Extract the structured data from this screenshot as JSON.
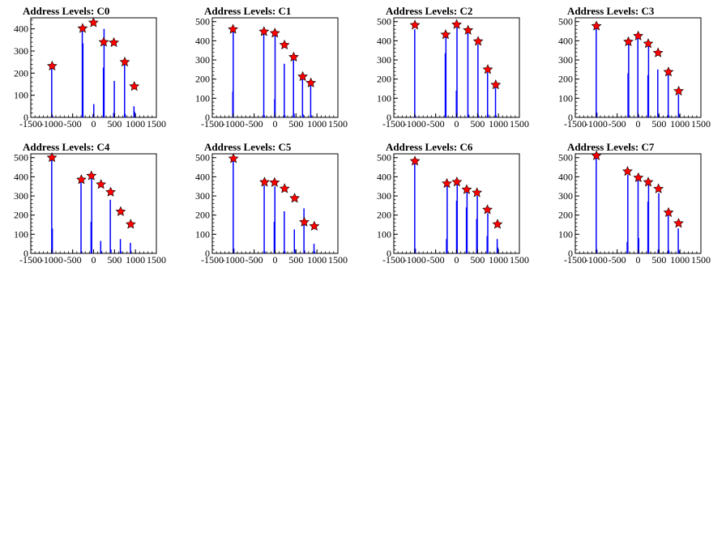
{
  "chart_data": [
    {
      "type": "bar",
      "title": "Address Levels: C0",
      "xlim": [
        -1500,
        1500
      ],
      "ylim": [
        0,
        450
      ],
      "xticks": [
        "-1500",
        "-1000",
        "-500",
        "0",
        "500",
        "1000",
        "1500"
      ],
      "yticks": [
        "0",
        "100",
        "200",
        "300",
        "400"
      ],
      "bars": [
        {
          "x": -1000,
          "y": 230
        },
        {
          "x": -985,
          "y": 10
        },
        {
          "x": -270,
          "y": 400
        },
        {
          "x": -255,
          "y": 335
        },
        {
          "x": -10,
          "y": 15
        },
        {
          "x": 5,
          "y": 60
        },
        {
          "x": 235,
          "y": 225
        },
        {
          "x": 250,
          "y": 400
        },
        {
          "x": 480,
          "y": 20
        },
        {
          "x": 495,
          "y": 165
        },
        {
          "x": 740,
          "y": 245
        },
        {
          "x": 755,
          "y": 15
        },
        {
          "x": 965,
          "y": 50
        },
        {
          "x": 980,
          "y": 25
        }
      ],
      "peaks": [
        {
          "x": -990,
          "y": 232
        },
        {
          "x": -262,
          "y": 402
        },
        {
          "x": -3,
          "y": 428
        },
        {
          "x": 242,
          "y": 340
        },
        {
          "x": 485,
          "y": 338
        },
        {
          "x": 745,
          "y": 250
        },
        {
          "x": 972,
          "y": 140
        }
      ]
    },
    {
      "type": "bar",
      "title": "Address Levels: C1",
      "xlim": [
        -1500,
        1500
      ],
      "ylim": [
        0,
        520
      ],
      "xticks": [
        "-1500",
        "-1000",
        "-500",
        "0",
        "500",
        "1000",
        "1500"
      ],
      "yticks": [
        "0",
        "100",
        "200",
        "300",
        "400",
        "500"
      ],
      "bars": [
        {
          "x": -1010,
          "y": 135
        },
        {
          "x": -1000,
          "y": 460
        },
        {
          "x": -270,
          "y": 440
        },
        {
          "x": -255,
          "y": 10
        },
        {
          "x": -10,
          "y": 95
        },
        {
          "x": 0,
          "y": 435
        },
        {
          "x": 220,
          "y": 280
        },
        {
          "x": 235,
          "y": 10
        },
        {
          "x": 440,
          "y": 305
        },
        {
          "x": 455,
          "y": 20
        },
        {
          "x": 655,
          "y": 200
        },
        {
          "x": 670,
          "y": 15
        },
        {
          "x": 850,
          "y": 170
        },
        {
          "x": 865,
          "y": 10
        }
      ],
      "peaks": [
        {
          "x": -1005,
          "y": 460
        },
        {
          "x": -265,
          "y": 448
        },
        {
          "x": -5,
          "y": 440
        },
        {
          "x": 225,
          "y": 378
        },
        {
          "x": 445,
          "y": 315
        },
        {
          "x": 660,
          "y": 213
        },
        {
          "x": 855,
          "y": 180
        }
      ]
    },
    {
      "type": "bar",
      "title": "Address Levels: C2",
      "xlim": [
        -1500,
        1500
      ],
      "ylim": [
        0,
        520
      ],
      "xticks": [
        "-1500",
        "-1000",
        "-500",
        "0",
        "500",
        "1000",
        "1500"
      ],
      "yticks": [
        "0",
        "100",
        "200",
        "300",
        "400",
        "500"
      ],
      "bars": [
        {
          "x": -1000,
          "y": 460
        },
        {
          "x": -985,
          "y": 10
        },
        {
          "x": -270,
          "y": 335
        },
        {
          "x": -255,
          "y": 430
        },
        {
          "x": -5,
          "y": 140
        },
        {
          "x": 10,
          "y": 470
        },
        {
          "x": 270,
          "y": 445
        },
        {
          "x": 285,
          "y": 15
        },
        {
          "x": 510,
          "y": 380
        },
        {
          "x": 525,
          "y": 10
        },
        {
          "x": 740,
          "y": 235
        },
        {
          "x": 755,
          "y": 15
        },
        {
          "x": 930,
          "y": 155
        },
        {
          "x": 945,
          "y": 10
        }
      ],
      "peaks": [
        {
          "x": -995,
          "y": 482
        },
        {
          "x": -262,
          "y": 432
        },
        {
          "x": 2,
          "y": 485
        },
        {
          "x": 275,
          "y": 455
        },
        {
          "x": 515,
          "y": 397
        },
        {
          "x": 745,
          "y": 250
        },
        {
          "x": 935,
          "y": 170
        }
      ]
    },
    {
      "type": "bar",
      "title": "Address Levels: C3",
      "xlim": [
        -1500,
        1500
      ],
      "ylim": [
        0,
        520
      ],
      "xticks": [
        "-1500",
        "-1000",
        "-500",
        "0",
        "500",
        "1000",
        "1500"
      ],
      "yticks": [
        "0",
        "100",
        "200",
        "300",
        "400",
        "500"
      ],
      "bars": [
        {
          "x": -1000,
          "y": 470
        },
        {
          "x": -985,
          "y": 25
        },
        {
          "x": -240,
          "y": 230
        },
        {
          "x": -225,
          "y": 385
        },
        {
          "x": -5,
          "y": 420
        },
        {
          "x": 10,
          "y": 15
        },
        {
          "x": 235,
          "y": 220
        },
        {
          "x": 250,
          "y": 375
        },
        {
          "x": 470,
          "y": 250
        },
        {
          "x": 485,
          "y": 15
        },
        {
          "x": 720,
          "y": 225
        },
        {
          "x": 735,
          "y": 10
        },
        {
          "x": 965,
          "y": 120
        },
        {
          "x": 980,
          "y": 15
        }
      ],
      "peaks": [
        {
          "x": -995,
          "y": 477
        },
        {
          "x": -232,
          "y": 395
        },
        {
          "x": 2,
          "y": 425
        },
        {
          "x": 242,
          "y": 385
        },
        {
          "x": 477,
          "y": 337
        },
        {
          "x": 725,
          "y": 237
        },
        {
          "x": 970,
          "y": 137
        }
      ]
    },
    {
      "type": "bar",
      "title": "Address Levels: C4",
      "xlim": [
        -1500,
        1500
      ],
      "ylim": [
        0,
        520
      ],
      "xticks": [
        "-1500",
        "-1000",
        "-500",
        "0",
        "500",
        "1000",
        "1500"
      ],
      "yticks": [
        "0",
        "100",
        "200",
        "300",
        "400",
        "500"
      ],
      "bars": [
        {
          "x": -1000,
          "y": 500
        },
        {
          "x": -985,
          "y": 130
        },
        {
          "x": -300,
          "y": 370
        },
        {
          "x": -285,
          "y": 10
        },
        {
          "x": -60,
          "y": 165
        },
        {
          "x": -45,
          "y": 395
        },
        {
          "x": 170,
          "y": 65
        },
        {
          "x": 185,
          "y": 10
        },
        {
          "x": 400,
          "y": 280
        },
        {
          "x": 415,
          "y": 20
        },
        {
          "x": 640,
          "y": 75
        },
        {
          "x": 655,
          "y": 10
        },
        {
          "x": 880,
          "y": 55
        },
        {
          "x": 895,
          "y": 10
        }
      ],
      "peaks": [
        {
          "x": -995,
          "y": 500
        },
        {
          "x": -292,
          "y": 385
        },
        {
          "x": -52,
          "y": 405
        },
        {
          "x": 177,
          "y": 360
        },
        {
          "x": 407,
          "y": 320
        },
        {
          "x": 647,
          "y": 218
        },
        {
          "x": 887,
          "y": 152
        }
      ]
    },
    {
      "type": "bar",
      "title": "Address Levels: C5",
      "xlim": [
        -1500,
        1500
      ],
      "ylim": [
        0,
        520
      ],
      "xticks": [
        "-1500",
        "-1000",
        "-500",
        "0",
        "500",
        "1000",
        "1500"
      ],
      "yticks": [
        "0",
        "100",
        "200",
        "300",
        "400",
        "500"
      ],
      "bars": [
        {
          "x": -1000,
          "y": 485
        },
        {
          "x": -985,
          "y": 25
        },
        {
          "x": -260,
          "y": 355
        },
        {
          "x": -245,
          "y": 10
        },
        {
          "x": -20,
          "y": 165
        },
        {
          "x": -5,
          "y": 350
        },
        {
          "x": 220,
          "y": 220
        },
        {
          "x": 235,
          "y": 10
        },
        {
          "x": 460,
          "y": 125
        },
        {
          "x": 475,
          "y": 20
        },
        {
          "x": 690,
          "y": 235
        },
        {
          "x": 705,
          "y": 15
        },
        {
          "x": 930,
          "y": 50
        },
        {
          "x": 945,
          "y": 10
        }
      ],
      "peaks": [
        {
          "x": -995,
          "y": 495
        },
        {
          "x": -252,
          "y": 372
        },
        {
          "x": -12,
          "y": 370
        },
        {
          "x": 227,
          "y": 338
        },
        {
          "x": 467,
          "y": 288
        },
        {
          "x": 697,
          "y": 163
        },
        {
          "x": 937,
          "y": 142
        }
      ]
    },
    {
      "type": "bar",
      "title": "Address Levels: C6",
      "xlim": [
        -1500,
        1500
      ],
      "ylim": [
        0,
        520
      ],
      "xticks": [
        "-1500",
        "-1000",
        "-500",
        "0",
        "500",
        "1000",
        "1500"
      ],
      "yticks": [
        "0",
        "100",
        "200",
        "300",
        "400",
        "500"
      ],
      "bars": [
        {
          "x": -1000,
          "y": 480
        },
        {
          "x": -985,
          "y": 25
        },
        {
          "x": -240,
          "y": 75
        },
        {
          "x": -225,
          "y": 355
        },
        {
          "x": 0,
          "y": 275
        },
        {
          "x": 15,
          "y": 365
        },
        {
          "x": 235,
          "y": 240
        },
        {
          "x": 250,
          "y": 320
        },
        {
          "x": 480,
          "y": 180
        },
        {
          "x": 495,
          "y": 300
        },
        {
          "x": 730,
          "y": 90
        },
        {
          "x": 745,
          "y": 210
        },
        {
          "x": 970,
          "y": 75
        },
        {
          "x": 985,
          "y": 30
        }
      ],
      "peaks": [
        {
          "x": -995,
          "y": 482
        },
        {
          "x": -232,
          "y": 365
        },
        {
          "x": 7,
          "y": 373
        },
        {
          "x": 242,
          "y": 333
        },
        {
          "x": 487,
          "y": 317
        },
        {
          "x": 737,
          "y": 228
        },
        {
          "x": 977,
          "y": 152
        }
      ]
    },
    {
      "type": "bar",
      "title": "Address Levels: C7",
      "xlim": [
        -1500,
        1500
      ],
      "ylim": [
        0,
        520
      ],
      "xticks": [
        "-1500",
        "-1000",
        "-500",
        "0",
        "500",
        "1000",
        "1500"
      ],
      "yticks": [
        "0",
        "100",
        "200",
        "300",
        "400",
        "500"
      ],
      "bars": [
        {
          "x": -1000,
          "y": 510
        },
        {
          "x": -985,
          "y": 20
        },
        {
          "x": -260,
          "y": 60
        },
        {
          "x": -245,
          "y": 410
        },
        {
          "x": 0,
          "y": 385
        },
        {
          "x": 15,
          "y": 80
        },
        {
          "x": 235,
          "y": 270
        },
        {
          "x": 250,
          "y": 360
        },
        {
          "x": 480,
          "y": 20
        },
        {
          "x": 495,
          "y": 315
        },
        {
          "x": 720,
          "y": 200
        },
        {
          "x": 735,
          "y": 15
        },
        {
          "x": 960,
          "y": 130
        },
        {
          "x": 975,
          "y": 15
        }
      ],
      "peaks": [
        {
          "x": -995,
          "y": 510
        },
        {
          "x": -252,
          "y": 428
        },
        {
          "x": 7,
          "y": 395
        },
        {
          "x": 242,
          "y": 372
        },
        {
          "x": 487,
          "y": 337
        },
        {
          "x": 727,
          "y": 213
        },
        {
          "x": 967,
          "y": 157
        }
      ]
    }
  ]
}
